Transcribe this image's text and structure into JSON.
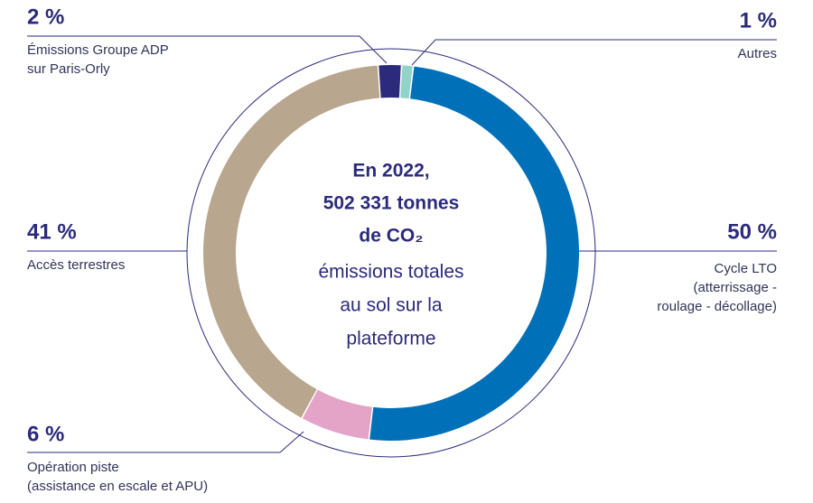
{
  "chart_data": {
    "type": "donut",
    "categories": [
      [
        "Émissions Groupe ADP",
        "sur Paris-Orly"
      ],
      [
        "Autres"
      ],
      [
        "Cycle LTO",
        "(atterrissage -",
        "roulage - décollage)"
      ],
      [
        "Opération piste",
        "(assistance en escale et APU)"
      ],
      [
        "Accès terrestres"
      ]
    ],
    "values": [
      2,
      1,
      50,
      6,
      41
    ],
    "value_labels": [
      "2 %",
      "1 %",
      "50 %",
      "6 %",
      "41 %"
    ],
    "colors": [
      "#2b2a7c",
      "#8fd3c9",
      "#0070b8",
      "#e4a4c8",
      "#b8a68e"
    ],
    "center_text": {
      "bold": [
        "En 2022,",
        "502 331 tonnes",
        "de CO₂"
      ],
      "regular": [
        "émissions totales",
        "au sol sur la",
        "plateforme"
      ]
    }
  }
}
